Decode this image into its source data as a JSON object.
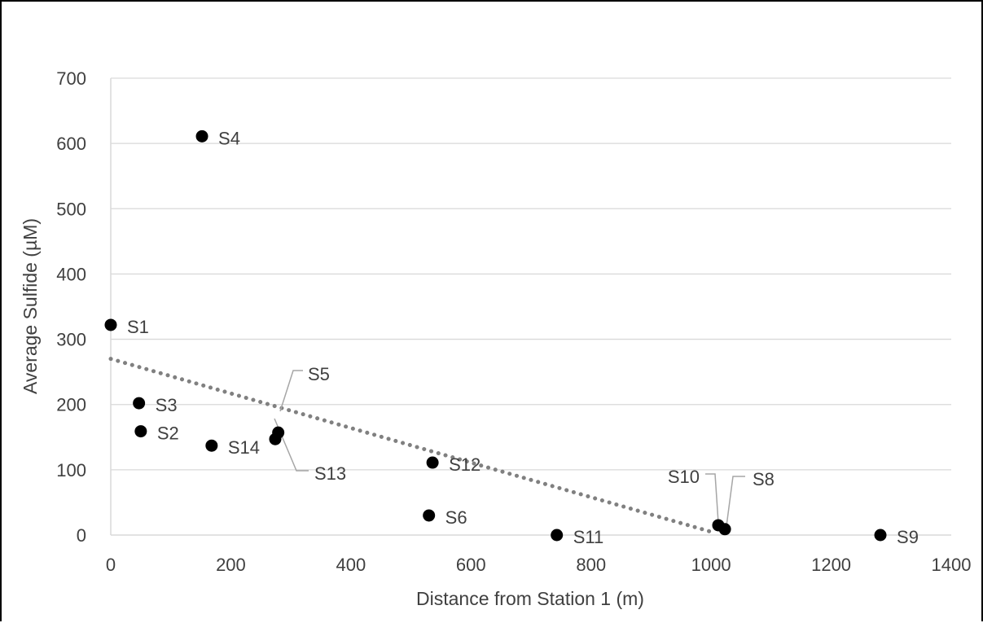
{
  "chart_data": {
    "type": "scatter",
    "title": "",
    "xlabel": "Distance from Station 1 (m)",
    "ylabel": "Average Sulfide (µM)",
    "xlim": [
      0,
      1400
    ],
    "ylim": [
      0,
      700
    ],
    "xticks": [
      0,
      200,
      400,
      600,
      800,
      1000,
      1200,
      1400
    ],
    "yticks": [
      0,
      100,
      200,
      300,
      400,
      500,
      600,
      700
    ],
    "x_tick_labels": [
      "0",
      "200",
      "400",
      "600",
      "800",
      "1000",
      "1200",
      "1400"
    ],
    "y_tick_labels": [
      "0",
      "100",
      "200",
      "300",
      "400",
      "500",
      "600",
      "700"
    ],
    "grid": "horizontal",
    "legend": "none",
    "points": [
      {
        "label": "S1",
        "x": 0,
        "y": 322
      },
      {
        "label": "S2",
        "x": 50,
        "y": 159
      },
      {
        "label": "S3",
        "x": 47,
        "y": 202
      },
      {
        "label": "S4",
        "x": 152,
        "y": 611
      },
      {
        "label": "S5",
        "x": 279,
        "y": 157
      },
      {
        "label": "S6",
        "x": 530,
        "y": 30
      },
      {
        "label": "S8",
        "x": 1023,
        "y": 9
      },
      {
        "label": "S9",
        "x": 1282,
        "y": 0
      },
      {
        "label": "S10",
        "x": 1012,
        "y": 15
      },
      {
        "label": "S11",
        "x": 743,
        "y": 0
      },
      {
        "label": "S12",
        "x": 536,
        "y": 111
      },
      {
        "label": "S13",
        "x": 274,
        "y": 147
      },
      {
        "label": "S14",
        "x": 168,
        "y": 137
      }
    ],
    "trendline": {
      "type": "linear",
      "style": "dotted",
      "x": [
        0,
        1000
      ],
      "y": [
        270,
        5
      ]
    },
    "colors": {
      "points": "#000000",
      "trendline": "#808080",
      "grid": "#d9d9d9",
      "text": "#404040",
      "leader": "#a6a6a6"
    }
  }
}
